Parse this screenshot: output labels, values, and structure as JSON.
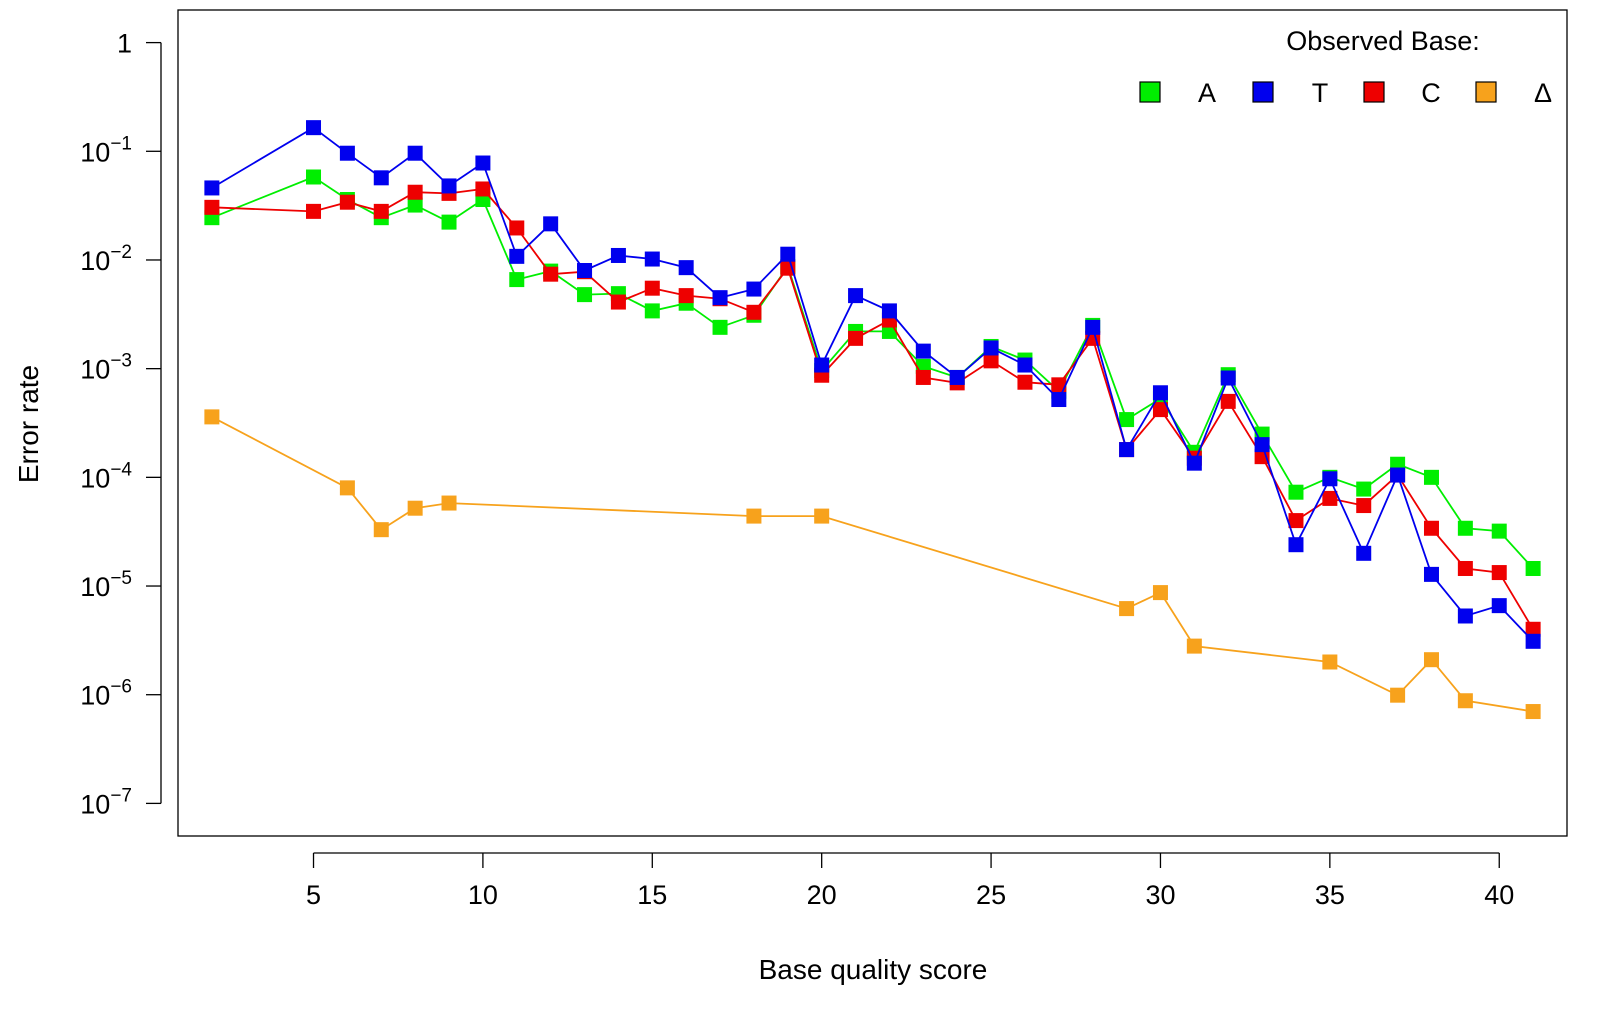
{
  "chart_data": {
    "type": "line",
    "xlabel": "Base quality score",
    "ylabel": "Error rate",
    "xlim": [
      1,
      42
    ],
    "ylim_log10": [
      -7.3,
      0.3
    ],
    "y_scale": "log",
    "x_ticks": [
      5,
      10,
      15,
      20,
      25,
      30,
      35,
      40
    ],
    "x_tick_labels": [
      "5",
      "10",
      "15",
      "20",
      "25",
      "30",
      "35",
      "40"
    ],
    "y_ticks": [
      {
        "exp": 0,
        "base": "1",
        "sup": ""
      },
      {
        "exp": -1,
        "base": "10",
        "sup": "−1"
      },
      {
        "exp": -2,
        "base": "10",
        "sup": "−2"
      },
      {
        "exp": -3,
        "base": "10",
        "sup": "−3"
      },
      {
        "exp": -4,
        "base": "10",
        "sup": "−4"
      },
      {
        "exp": -5,
        "base": "10",
        "sup": "−5"
      },
      {
        "exp": -6,
        "base": "10",
        "sup": "−6"
      },
      {
        "exp": -7,
        "base": "10",
        "sup": "−7"
      }
    ],
    "grid": false,
    "legend": {
      "title": "Observed Base:",
      "position": "top-right",
      "entries": [
        "A",
        "T",
        "C",
        "Δ"
      ]
    },
    "series": [
      {
        "name": "A",
        "color": "#00ee00",
        "x": [
          2,
          5,
          6,
          7,
          8,
          9,
          10,
          11,
          12,
          13,
          14,
          15,
          16,
          17,
          18,
          19,
          20,
          21,
          22,
          23,
          24,
          25,
          26,
          27,
          28,
          29,
          30,
          31,
          32,
          33,
          34,
          35,
          36,
          37,
          38,
          39,
          40,
          41
        ],
        "y": [
          0.0245,
          0.058,
          0.036,
          0.0245,
          0.032,
          0.0223,
          0.036,
          0.0066,
          0.0079,
          0.0048,
          0.0049,
          0.0034,
          0.004,
          0.0024,
          0.0031,
          0.0087,
          0.00096,
          0.0022,
          0.0022,
          0.00105,
          0.00083,
          0.0016,
          0.0012,
          0.00062,
          0.0025,
          0.00034,
          0.00053,
          0.00017,
          0.00088,
          0.00025,
          7.3e-05,
          0.0001,
          7.8e-05,
          0.000132,
          0.0001,
          3.4e-05,
          3.2e-05,
          1.45e-05
        ]
      },
      {
        "name": "T",
        "color": "#0000ee",
        "x": [
          2,
          5,
          6,
          7,
          8,
          9,
          10,
          11,
          12,
          13,
          14,
          15,
          16,
          17,
          18,
          19,
          20,
          21,
          22,
          23,
          24,
          25,
          26,
          27,
          28,
          29,
          30,
          31,
          32,
          33,
          34,
          35,
          36,
          37,
          38,
          39,
          40,
          41
        ],
        "y": [
          0.046,
          0.165,
          0.096,
          0.057,
          0.096,
          0.048,
          0.078,
          0.0108,
          0.0215,
          0.008,
          0.011,
          0.0102,
          0.0085,
          0.0045,
          0.0054,
          0.0113,
          0.00108,
          0.0047,
          0.0034,
          0.00145,
          0.00083,
          0.00155,
          0.00108,
          0.00052,
          0.0024,
          0.00018,
          0.0006,
          0.000135,
          0.00082,
          0.0002,
          2.4e-05,
          9.7e-05,
          2e-05,
          0.000105,
          1.28e-05,
          5.3e-06,
          6.6e-06,
          3.1e-06
        ]
      },
      {
        "name": "C",
        "color": "#ee0000",
        "x": [
          2,
          5,
          6,
          7,
          8,
          9,
          10,
          11,
          12,
          13,
          14,
          15,
          16,
          17,
          18,
          19,
          20,
          21,
          22,
          23,
          24,
          25,
          26,
          27,
          28,
          29,
          30,
          31,
          32,
          33,
          34,
          35,
          36,
          37,
          38,
          39,
          40,
          41
        ],
        "y": [
          0.0305,
          0.028,
          0.034,
          0.028,
          0.042,
          0.041,
          0.045,
          0.0197,
          0.0074,
          0.0078,
          0.0041,
          0.0055,
          0.0047,
          0.0044,
          0.0033,
          0.0084,
          0.00087,
          0.0019,
          0.0028,
          0.00083,
          0.00074,
          0.00118,
          0.00075,
          0.00071,
          0.0019,
          0.00018,
          0.00042,
          0.00015,
          0.0005,
          0.000155,
          4e-05,
          6.4e-05,
          5.5e-05,
          0.000105,
          3.4e-05,
          1.45e-05,
          1.33e-05,
          4e-06
        ]
      },
      {
        "name": "Δ",
        "color": "#f7a21c",
        "x": [
          2,
          6,
          7,
          8,
          9,
          18,
          20,
          29,
          30,
          31,
          35,
          37,
          38,
          39,
          41
        ],
        "y": [
          0.00036,
          8e-05,
          3.3e-05,
          5.2e-05,
          5.8e-05,
          4.4e-05,
          4.4e-05,
          6.2e-06,
          8.7e-06,
          2.8e-06,
          2e-06,
          9.9e-07,
          2.1e-06,
          8.8e-07,
          7e-07
        ]
      }
    ]
  }
}
